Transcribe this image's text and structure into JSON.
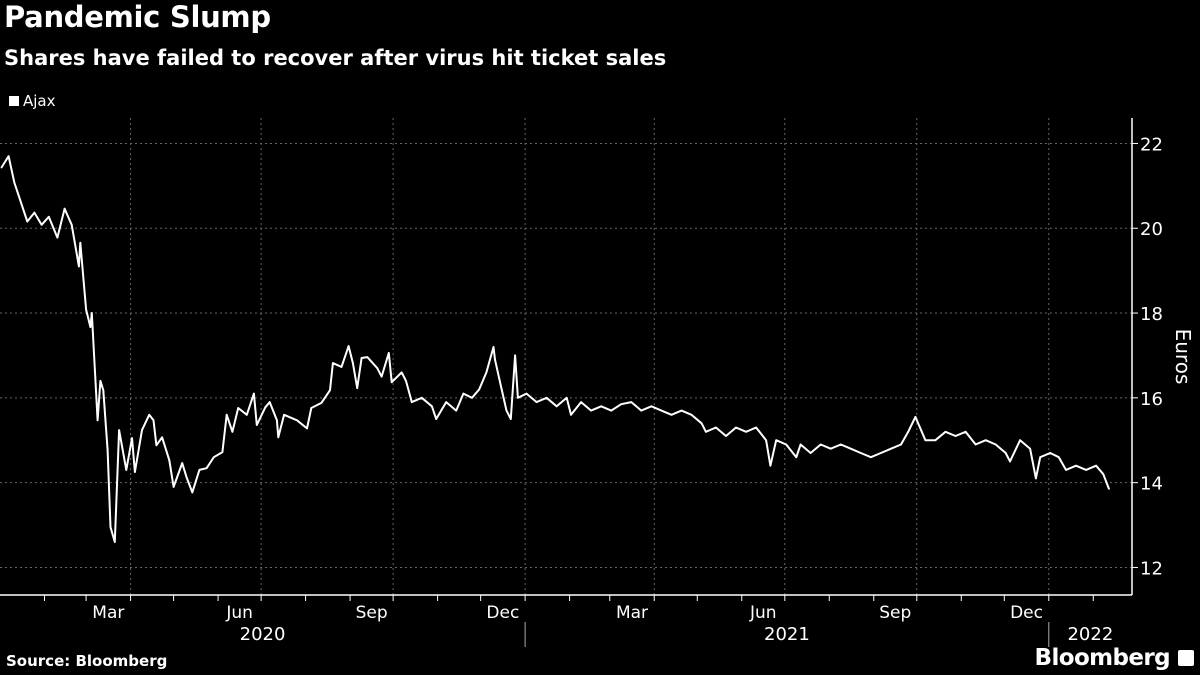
{
  "header": {
    "title": "Pandemic Slump",
    "subtitle": "Shares have failed to recover after virus hit ticket sales"
  },
  "footer": {
    "source": "Source: Bloomberg",
    "brand": "Bloomberg"
  },
  "colors": {
    "background": "#000000",
    "line": "#ffffff",
    "grid": "#666666",
    "text": "#ffffff"
  },
  "chart_data": {
    "type": "line",
    "title": "Pandemic Slump",
    "subtitle": "Shares have failed to recover after virus hit ticket sales",
    "ylabel": "Euros",
    "xlabel": "",
    "ylim": [
      11.35,
      22.6
    ],
    "xlim": [
      "2020-01-01",
      "2022-02-28"
    ],
    "y_axis_position": "right",
    "yticks": [
      12,
      14,
      16,
      18,
      20,
      22
    ],
    "month_labels": [
      {
        "label": "Mar",
        "month": "2020-03"
      },
      {
        "label": "Jun",
        "month": "2020-06"
      },
      {
        "label": "Sep",
        "month": "2020-09"
      },
      {
        "label": "Dec",
        "month": "2020-12"
      },
      {
        "label": "Mar",
        "month": "2021-03"
      },
      {
        "label": "Jun",
        "month": "2021-06"
      },
      {
        "label": "Sep",
        "month": "2021-09"
      },
      {
        "label": "Dec",
        "month": "2021-12"
      }
    ],
    "year_labels": [
      "2020",
      "2021",
      "2022"
    ],
    "grid": true,
    "legend_position": "top-left",
    "series": [
      {
        "name": "Ajax",
        "color": "#ffffff",
        "x": [
          "2020-01-02",
          "2020-01-07",
          "2020-01-11",
          "2020-01-20",
          "2020-01-25",
          "2020-01-30",
          "2020-02-04",
          "2020-02-10",
          "2020-02-15",
          "2020-02-20",
          "2020-02-25",
          "2020-02-26",
          "2020-03-01",
          "2020-03-04",
          "2020-03-05",
          "2020-03-09",
          "2020-03-11",
          "2020-03-13",
          "2020-03-16",
          "2020-03-18",
          "2020-03-21",
          "2020-03-24",
          "2020-03-29",
          "2020-04-02",
          "2020-04-04",
          "2020-04-09",
          "2020-04-14",
          "2020-04-17",
          "2020-04-19",
          "2020-04-23",
          "2020-04-28",
          "2020-05-01",
          "2020-05-07",
          "2020-05-10",
          "2020-05-14",
          "2020-05-19",
          "2020-05-24",
          "2020-05-29",
          "2020-06-04",
          "2020-06-07",
          "2020-06-11",
          "2020-06-15",
          "2020-06-21",
          "2020-06-26",
          "2020-06-28",
          "2020-07-04",
          "2020-07-07",
          "2020-07-12",
          "2020-07-13",
          "2020-07-17",
          "2020-07-26",
          "2020-08-02",
          "2020-08-05",
          "2020-08-12",
          "2020-08-18",
          "2020-08-20",
          "2020-08-26",
          "2020-08-31",
          "2020-09-03",
          "2020-09-06",
          "2020-09-09",
          "2020-09-13",
          "2020-09-20",
          "2020-09-23",
          "2020-09-28",
          "2020-09-30",
          "2020-10-07",
          "2020-10-10",
          "2020-10-14",
          "2020-10-21",
          "2020-10-28",
          "2020-10-31",
          "2020-11-07",
          "2020-11-14",
          "2020-11-19",
          "2020-11-25",
          "2020-11-30",
          "2020-12-05",
          "2020-12-10",
          "2020-12-11",
          "2020-12-15",
          "2020-12-19",
          "2020-12-22",
          "2020-12-25",
          "2020-12-27",
          "2021-01-02",
          "2021-01-09",
          "2021-01-16",
          "2021-01-23",
          "2021-01-30",
          "2021-02-02",
          "2021-02-09",
          "2021-02-16",
          "2021-02-23",
          "2021-03-02",
          "2021-03-09",
          "2021-03-16",
          "2021-03-23",
          "2021-03-30",
          "2021-04-06",
          "2021-04-13",
          "2021-04-20",
          "2021-04-27",
          "2021-05-04",
          "2021-05-07",
          "2021-05-14",
          "2021-05-21",
          "2021-05-28",
          "2021-06-04",
          "2021-06-11",
          "2021-06-18",
          "2021-06-21",
          "2021-06-25",
          "2021-07-02",
          "2021-07-09",
          "2021-07-12",
          "2021-07-19",
          "2021-07-26",
          "2021-08-02",
          "2021-08-09",
          "2021-08-16",
          "2021-08-23",
          "2021-08-30",
          "2021-09-06",
          "2021-09-13",
          "2021-09-20",
          "2021-09-25",
          "2021-09-30",
          "2021-10-07",
          "2021-10-14",
          "2021-10-21",
          "2021-10-28",
          "2021-11-04",
          "2021-11-11",
          "2021-11-18",
          "2021-11-25",
          "2021-12-02",
          "2021-12-05",
          "2021-12-12",
          "2021-12-19",
          "2021-12-23",
          "2021-12-26",
          "2022-01-02",
          "2022-01-08",
          "2022-01-13",
          "2022-01-20",
          "2022-01-27",
          "2022-02-03",
          "2022-02-08",
          "2022-02-12"
        ],
        "values": [
          21.43,
          21.7,
          21.08,
          20.16,
          20.37,
          20.08,
          20.27,
          19.78,
          20.46,
          20.08,
          19.1,
          19.66,
          18.08,
          17.67,
          18.0,
          15.47,
          16.4,
          16.18,
          14.77,
          12.95,
          12.6,
          15.24,
          14.3,
          15.05,
          14.25,
          15.24,
          15.6,
          15.47,
          14.88,
          15.07,
          14.53,
          13.9,
          14.46,
          14.13,
          13.77,
          14.3,
          14.34,
          14.6,
          14.72,
          15.6,
          15.2,
          15.76,
          15.6,
          16.1,
          15.36,
          15.78,
          15.9,
          15.47,
          15.07,
          15.6,
          15.47,
          15.28,
          15.76,
          15.88,
          16.18,
          16.82,
          16.73,
          17.22,
          16.82,
          16.23,
          16.94,
          16.96,
          16.7,
          16.5,
          17.06,
          16.37,
          16.6,
          16.4,
          15.9,
          16.0,
          15.8,
          15.5,
          15.9,
          15.7,
          16.1,
          16.0,
          16.2,
          16.6,
          17.2,
          16.9,
          16.3,
          15.7,
          15.5,
          17.0,
          16.0,
          16.1,
          15.9,
          16.0,
          15.8,
          16.0,
          15.6,
          15.9,
          15.7,
          15.8,
          15.7,
          15.85,
          15.9,
          15.7,
          15.8,
          15.7,
          15.6,
          15.7,
          15.6,
          15.4,
          15.2,
          15.3,
          15.1,
          15.3,
          15.2,
          15.3,
          15.0,
          14.4,
          15.0,
          14.9,
          14.6,
          14.9,
          14.7,
          14.9,
          14.8,
          14.9,
          14.8,
          14.7,
          14.6,
          14.7,
          14.8,
          14.9,
          15.2,
          15.55,
          15.0,
          15.0,
          15.2,
          15.1,
          15.2,
          14.9,
          15.0,
          14.9,
          14.7,
          14.5,
          15.0,
          14.8,
          14.1,
          14.6,
          14.7,
          14.6,
          14.3,
          14.4,
          14.3,
          14.4,
          14.2,
          13.85
        ]
      }
    ]
  }
}
